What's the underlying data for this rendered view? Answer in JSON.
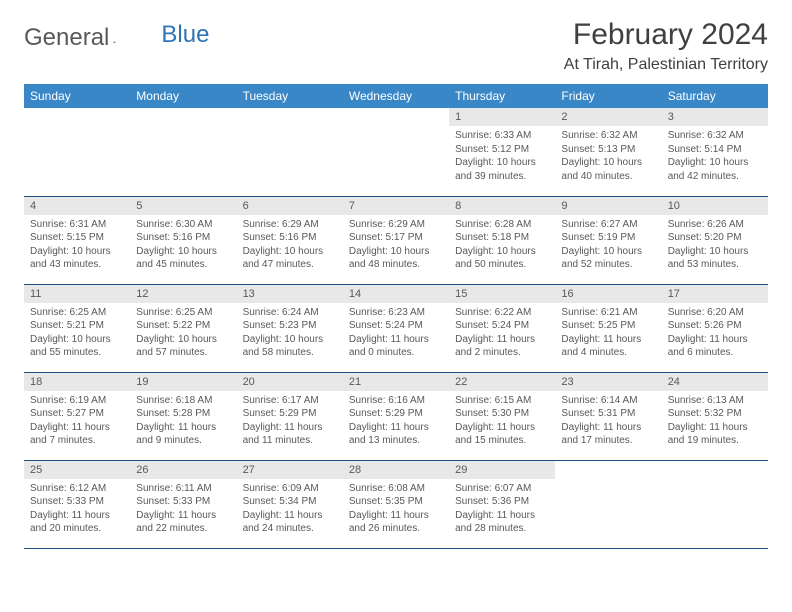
{
  "brand": {
    "text1": "General",
    "text2": "Blue"
  },
  "title": "February 2024",
  "location": "At Tirah, Palestinian Territory",
  "header_bg": "#3a87c7",
  "daynum_bg": "#e8e8e8",
  "border_color": "#1f4e79",
  "weekdays": [
    "Sunday",
    "Monday",
    "Tuesday",
    "Wednesday",
    "Thursday",
    "Friday",
    "Saturday"
  ],
  "weeks": [
    [
      null,
      null,
      null,
      null,
      {
        "n": "1",
        "sr": "Sunrise: 6:33 AM",
        "ss": "Sunset: 5:12 PM",
        "dl": "Daylight: 10 hours and 39 minutes."
      },
      {
        "n": "2",
        "sr": "Sunrise: 6:32 AM",
        "ss": "Sunset: 5:13 PM",
        "dl": "Daylight: 10 hours and 40 minutes."
      },
      {
        "n": "3",
        "sr": "Sunrise: 6:32 AM",
        "ss": "Sunset: 5:14 PM",
        "dl": "Daylight: 10 hours and 42 minutes."
      }
    ],
    [
      {
        "n": "4",
        "sr": "Sunrise: 6:31 AM",
        "ss": "Sunset: 5:15 PM",
        "dl": "Daylight: 10 hours and 43 minutes."
      },
      {
        "n": "5",
        "sr": "Sunrise: 6:30 AM",
        "ss": "Sunset: 5:16 PM",
        "dl": "Daylight: 10 hours and 45 minutes."
      },
      {
        "n": "6",
        "sr": "Sunrise: 6:29 AM",
        "ss": "Sunset: 5:16 PM",
        "dl": "Daylight: 10 hours and 47 minutes."
      },
      {
        "n": "7",
        "sr": "Sunrise: 6:29 AM",
        "ss": "Sunset: 5:17 PM",
        "dl": "Daylight: 10 hours and 48 minutes."
      },
      {
        "n": "8",
        "sr": "Sunrise: 6:28 AM",
        "ss": "Sunset: 5:18 PM",
        "dl": "Daylight: 10 hours and 50 minutes."
      },
      {
        "n": "9",
        "sr": "Sunrise: 6:27 AM",
        "ss": "Sunset: 5:19 PM",
        "dl": "Daylight: 10 hours and 52 minutes."
      },
      {
        "n": "10",
        "sr": "Sunrise: 6:26 AM",
        "ss": "Sunset: 5:20 PM",
        "dl": "Daylight: 10 hours and 53 minutes."
      }
    ],
    [
      {
        "n": "11",
        "sr": "Sunrise: 6:25 AM",
        "ss": "Sunset: 5:21 PM",
        "dl": "Daylight: 10 hours and 55 minutes."
      },
      {
        "n": "12",
        "sr": "Sunrise: 6:25 AM",
        "ss": "Sunset: 5:22 PM",
        "dl": "Daylight: 10 hours and 57 minutes."
      },
      {
        "n": "13",
        "sr": "Sunrise: 6:24 AM",
        "ss": "Sunset: 5:23 PM",
        "dl": "Daylight: 10 hours and 58 minutes."
      },
      {
        "n": "14",
        "sr": "Sunrise: 6:23 AM",
        "ss": "Sunset: 5:24 PM",
        "dl": "Daylight: 11 hours and 0 minutes."
      },
      {
        "n": "15",
        "sr": "Sunrise: 6:22 AM",
        "ss": "Sunset: 5:24 PM",
        "dl": "Daylight: 11 hours and 2 minutes."
      },
      {
        "n": "16",
        "sr": "Sunrise: 6:21 AM",
        "ss": "Sunset: 5:25 PM",
        "dl": "Daylight: 11 hours and 4 minutes."
      },
      {
        "n": "17",
        "sr": "Sunrise: 6:20 AM",
        "ss": "Sunset: 5:26 PM",
        "dl": "Daylight: 11 hours and 6 minutes."
      }
    ],
    [
      {
        "n": "18",
        "sr": "Sunrise: 6:19 AM",
        "ss": "Sunset: 5:27 PM",
        "dl": "Daylight: 11 hours and 7 minutes."
      },
      {
        "n": "19",
        "sr": "Sunrise: 6:18 AM",
        "ss": "Sunset: 5:28 PM",
        "dl": "Daylight: 11 hours and 9 minutes."
      },
      {
        "n": "20",
        "sr": "Sunrise: 6:17 AM",
        "ss": "Sunset: 5:29 PM",
        "dl": "Daylight: 11 hours and 11 minutes."
      },
      {
        "n": "21",
        "sr": "Sunrise: 6:16 AM",
        "ss": "Sunset: 5:29 PM",
        "dl": "Daylight: 11 hours and 13 minutes."
      },
      {
        "n": "22",
        "sr": "Sunrise: 6:15 AM",
        "ss": "Sunset: 5:30 PM",
        "dl": "Daylight: 11 hours and 15 minutes."
      },
      {
        "n": "23",
        "sr": "Sunrise: 6:14 AM",
        "ss": "Sunset: 5:31 PM",
        "dl": "Daylight: 11 hours and 17 minutes."
      },
      {
        "n": "24",
        "sr": "Sunrise: 6:13 AM",
        "ss": "Sunset: 5:32 PM",
        "dl": "Daylight: 11 hours and 19 minutes."
      }
    ],
    [
      {
        "n": "25",
        "sr": "Sunrise: 6:12 AM",
        "ss": "Sunset: 5:33 PM",
        "dl": "Daylight: 11 hours and 20 minutes."
      },
      {
        "n": "26",
        "sr": "Sunrise: 6:11 AM",
        "ss": "Sunset: 5:33 PM",
        "dl": "Daylight: 11 hours and 22 minutes."
      },
      {
        "n": "27",
        "sr": "Sunrise: 6:09 AM",
        "ss": "Sunset: 5:34 PM",
        "dl": "Daylight: 11 hours and 24 minutes."
      },
      {
        "n": "28",
        "sr": "Sunrise: 6:08 AM",
        "ss": "Sunset: 5:35 PM",
        "dl": "Daylight: 11 hours and 26 minutes."
      },
      {
        "n": "29",
        "sr": "Sunrise: 6:07 AM",
        "ss": "Sunset: 5:36 PM",
        "dl": "Daylight: 11 hours and 28 minutes."
      },
      null,
      null
    ]
  ]
}
